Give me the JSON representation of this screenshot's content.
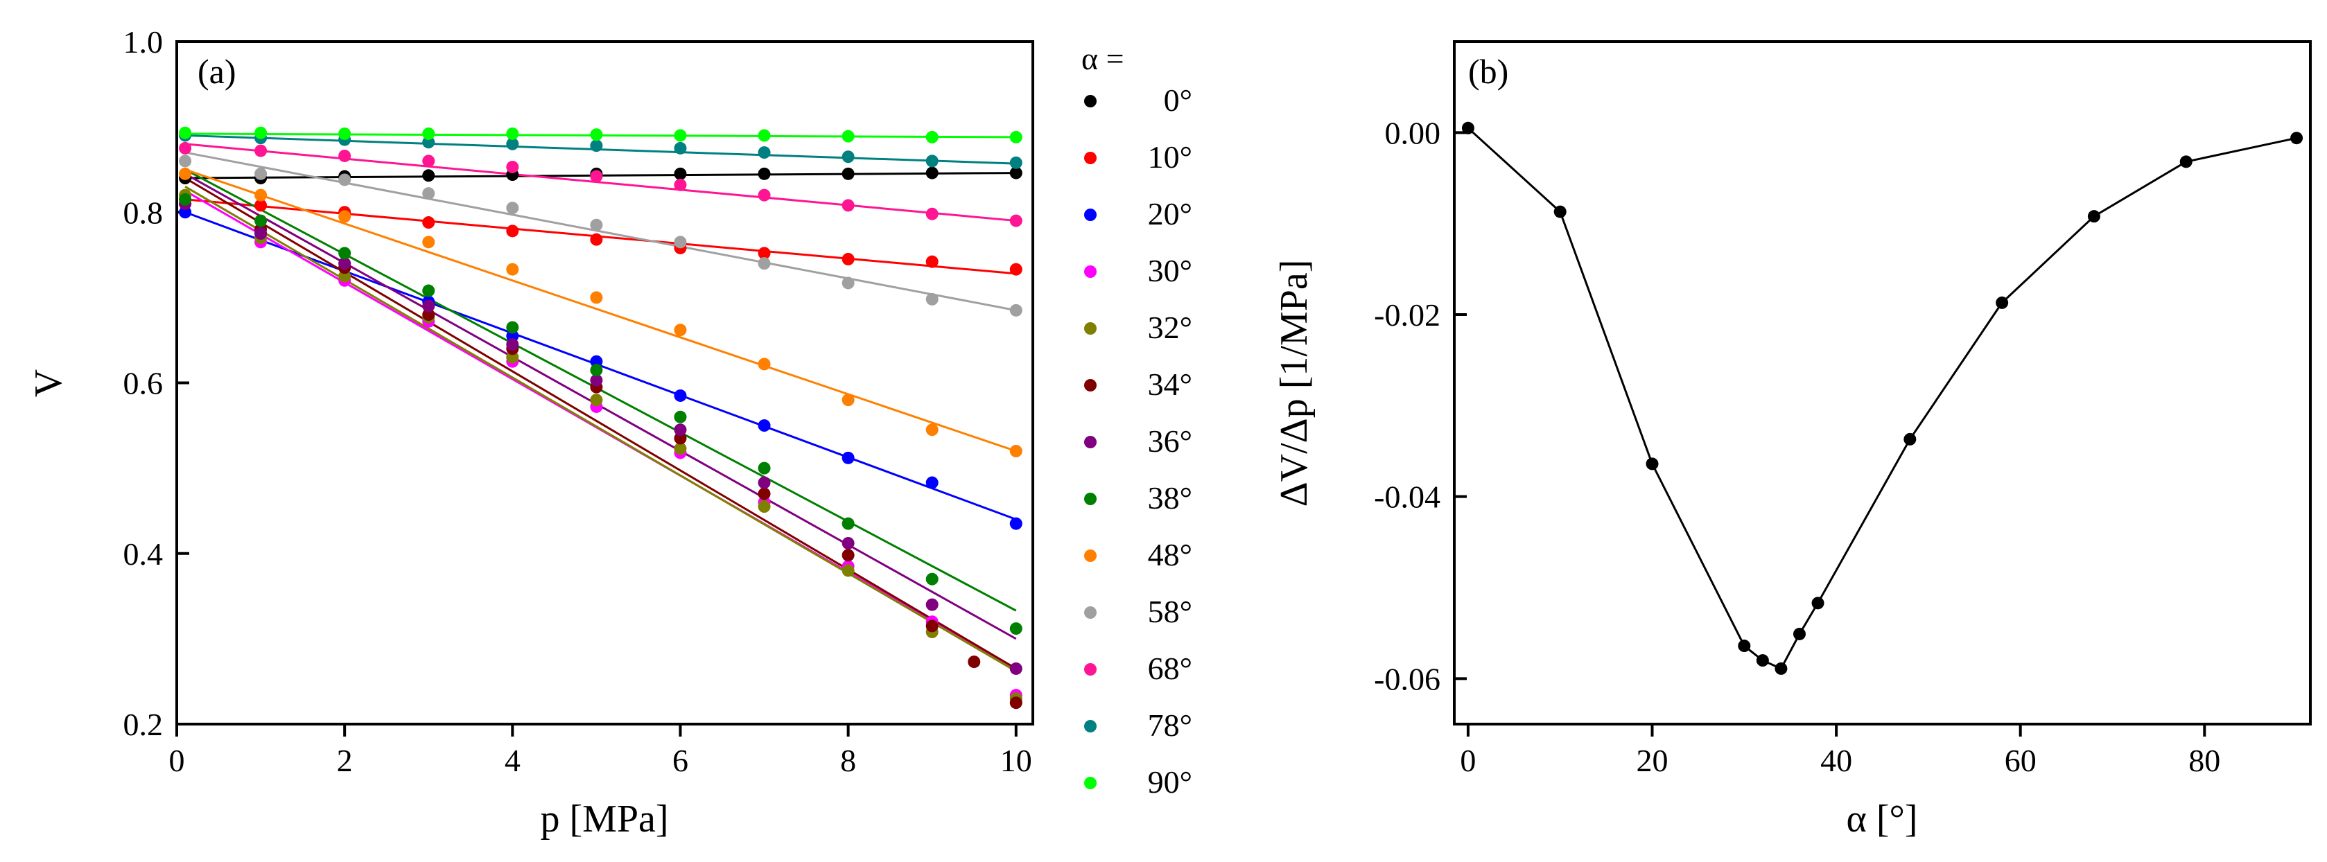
{
  "chart_data": [
    {
      "type": "scatter",
      "panel_label": "(a)",
      "xlabel": "p [MPa]",
      "ylabel": "V",
      "xlim": [
        0,
        10.2
      ],
      "ylim": [
        0.2,
        1.0
      ],
      "xticks": [
        0,
        2,
        4,
        6,
        8,
        10
      ],
      "yticks": [
        0.2,
        0.4,
        0.6,
        0.8,
        1.0
      ],
      "xtick_labels": [
        "0",
        "2",
        "4",
        "6",
        "8",
        "10"
      ],
      "ytick_labels": [
        "0.2",
        "0.4",
        "0.6",
        "0.8",
        "1.0"
      ],
      "fit_lines": true,
      "legend_title": "α =",
      "series": [
        {
          "name": "0°",
          "color": "#000000",
          "x": [
            0.1,
            1,
            2,
            3,
            4,
            5,
            6,
            7,
            8,
            9,
            10
          ],
          "y": [
            0.84,
            0.84,
            0.842,
            0.843,
            0.844,
            0.845,
            0.845,
            0.845,
            0.845,
            0.846,
            0.846
          ],
          "fit": [
            0.84,
            0.846
          ]
        },
        {
          "name": "10°",
          "color": "#ff0000",
          "x": [
            0.1,
            1,
            2,
            3,
            4,
            5,
            6,
            7,
            8,
            9,
            10
          ],
          "y": [
            0.81,
            0.808,
            0.8,
            0.788,
            0.778,
            0.768,
            0.758,
            0.752,
            0.745,
            0.742,
            0.733
          ],
          "fit": [
            0.815,
            0.728
          ]
        },
        {
          "name": "20°",
          "color": "#0000ff",
          "x": [
            0.1,
            1,
            2,
            3,
            4,
            5,
            6,
            7,
            8,
            9,
            10
          ],
          "y": [
            0.8,
            0.775,
            0.735,
            0.695,
            0.655,
            0.625,
            0.585,
            0.55,
            0.512,
            0.483,
            0.435
          ],
          "fit": [
            0.8,
            0.44
          ]
        },
        {
          "name": "30°",
          "color": "#ff00ff",
          "x": [
            0.1,
            1,
            2,
            3,
            4,
            5,
            6,
            7,
            8,
            9,
            10
          ],
          "y": [
            0.815,
            0.765,
            0.72,
            0.672,
            0.625,
            0.572,
            0.518,
            0.46,
            0.385,
            0.32,
            0.234
          ],
          "fit": [
            0.825,
            0.265
          ]
        },
        {
          "name": "32°",
          "color": "#808000",
          "x": [
            0.1,
            1,
            2,
            3,
            4,
            5,
            6,
            7,
            8,
            9,
            10
          ],
          "y": [
            0.82,
            0.77,
            0.725,
            0.677,
            0.63,
            0.58,
            0.523,
            0.455,
            0.38,
            0.308,
            0.23
          ],
          "fit": [
            0.83,
            0.262
          ]
        },
        {
          "name": "34°",
          "color": "#800000",
          "x": [
            0.1,
            1,
            2,
            3,
            4,
            5,
            6,
            7,
            8,
            9,
            9.5,
            10
          ],
          "y": [
            0.81,
            0.78,
            0.735,
            0.68,
            0.64,
            0.595,
            0.535,
            0.47,
            0.398,
            0.315,
            0.273,
            0.225
          ],
          "fit": [
            0.84,
            0.265
          ]
        },
        {
          "name": "36°",
          "color": "#800080",
          "x": [
            0.1,
            1,
            2,
            3,
            4,
            5,
            6,
            7,
            8,
            9,
            10
          ],
          "y": [
            0.81,
            0.775,
            0.74,
            0.69,
            0.645,
            0.603,
            0.545,
            0.483,
            0.412,
            0.34,
            0.265
          ],
          "fit": [
            0.845,
            0.3
          ]
        },
        {
          "name": "38°",
          "color": "#008000",
          "x": [
            0.1,
            1,
            2,
            3,
            4,
            5,
            6,
            7,
            8,
            9,
            10
          ],
          "y": [
            0.815,
            0.79,
            0.752,
            0.708,
            0.665,
            0.615,
            0.56,
            0.5,
            0.435,
            0.37,
            0.312
          ],
          "fit": [
            0.85,
            0.333
          ]
        },
        {
          "name": "48°",
          "color": "#ff8000",
          "x": [
            0.1,
            1,
            2,
            3,
            4,
            5,
            6,
            7,
            8,
            9,
            10
          ],
          "y": [
            0.845,
            0.82,
            0.795,
            0.765,
            0.733,
            0.7,
            0.662,
            0.622,
            0.58,
            0.545,
            0.52
          ],
          "fit": [
            0.85,
            0.52
          ]
        },
        {
          "name": "58°",
          "color": "#a0a0a0",
          "x": [
            0.1,
            1,
            2,
            3,
            4,
            5,
            6,
            7,
            8,
            9,
            10
          ],
          "y": [
            0.86,
            0.845,
            0.838,
            0.822,
            0.805,
            0.785,
            0.765,
            0.74,
            0.717,
            0.698,
            0.685
          ],
          "fit": [
            0.87,
            0.685
          ]
        },
        {
          "name": "68°",
          "color": "#ff1493",
          "x": [
            0.1,
            1,
            2,
            3,
            4,
            5,
            6,
            7,
            8,
            9,
            10
          ],
          "y": [
            0.875,
            0.872,
            0.866,
            0.86,
            0.853,
            0.842,
            0.832,
            0.82,
            0.808,
            0.798,
            0.79
          ],
          "fit": [
            0.88,
            0.79
          ]
        },
        {
          "name": "78°",
          "color": "#008080",
          "x": [
            0.1,
            1,
            2,
            3,
            4,
            5,
            6,
            7,
            8,
            9,
            10
          ],
          "y": [
            0.89,
            0.887,
            0.885,
            0.882,
            0.88,
            0.878,
            0.875,
            0.87,
            0.865,
            0.86,
            0.858
          ],
          "fit": [
            0.89,
            0.857
          ]
        },
        {
          "name": "90°",
          "color": "#00ff00",
          "x": [
            0.1,
            1,
            2,
            3,
            4,
            5,
            6,
            7,
            8,
            9,
            10
          ],
          "y": [
            0.893,
            0.893,
            0.892,
            0.892,
            0.892,
            0.891,
            0.89,
            0.89,
            0.889,
            0.888,
            0.888
          ],
          "fit": [
            0.892,
            0.888
          ]
        }
      ]
    },
    {
      "type": "line",
      "panel_label": "(b)",
      "xlabel": "α [°]",
      "ylabel": "ΔV/Δp [1/MPa]",
      "xlim": [
        -1.5,
        91.5
      ],
      "ylim": [
        -0.065,
        0.01
      ],
      "xticks": [
        0,
        20,
        40,
        60,
        80
      ],
      "yticks": [
        0.0,
        -0.02,
        -0.04,
        -0.06
      ],
      "xtick_labels": [
        "0",
        "20",
        "40",
        "60",
        "80"
      ],
      "ytick_labels": [
        "0.00",
        "-0.02",
        "-0.04",
        "-0.06"
      ],
      "series": [
        {
          "name": "ΔV/Δp",
          "color": "#000000",
          "x": [
            0,
            10,
            20,
            30,
            32,
            34,
            36,
            38,
            48,
            58,
            68,
            78,
            90
          ],
          "y": [
            0.0005,
            -0.0087,
            -0.0364,
            -0.0564,
            -0.058,
            -0.0589,
            -0.0551,
            -0.0517,
            -0.0337,
            -0.0187,
            -0.0092,
            -0.0032,
            -0.0006
          ]
        }
      ]
    }
  ]
}
